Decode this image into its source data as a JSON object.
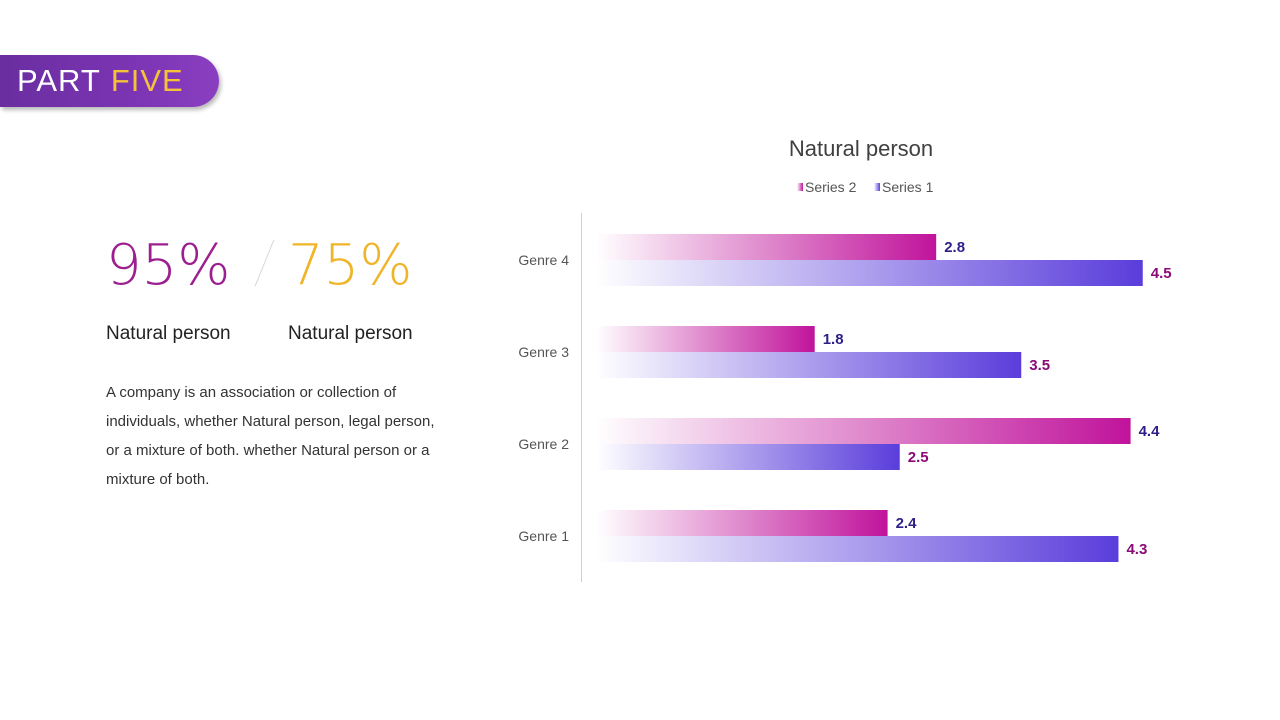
{
  "header": {
    "part_word": "PART",
    "part_number": "FIVE"
  },
  "stats": [
    {
      "value": "95%",
      "label": "Natural person",
      "color": "#9b1f8e"
    },
    {
      "value": "75%",
      "label": "Natural person",
      "color": "#f0b429"
    }
  ],
  "description": "A company is an association or collection of individuals, whether Natural person, legal person, or a mixture of both. whether Natural person or a mixture of both.",
  "colors": {
    "series2": "#c0139b",
    "series1": "#5a3ddb",
    "series2_label": "#2d1f8a",
    "series1_label": "#8b0a78"
  },
  "chart_data": {
    "type": "bar",
    "orientation": "horizontal",
    "title": "Natural person",
    "categories": [
      "Genre 1",
      "Genre 2",
      "Genre 3",
      "Genre 4"
    ],
    "series": [
      {
        "name": "Series 2",
        "values": [
          2.4,
          4.4,
          1.8,
          2.8
        ]
      },
      {
        "name": "Series 1",
        "values": [
          4.3,
          2.5,
          3.5,
          4.5
        ]
      }
    ],
    "legend": [
      "Series 2",
      "Series 1"
    ],
    "legend_position": "top",
    "xlim": [
      0,
      5
    ],
    "grid": false
  }
}
